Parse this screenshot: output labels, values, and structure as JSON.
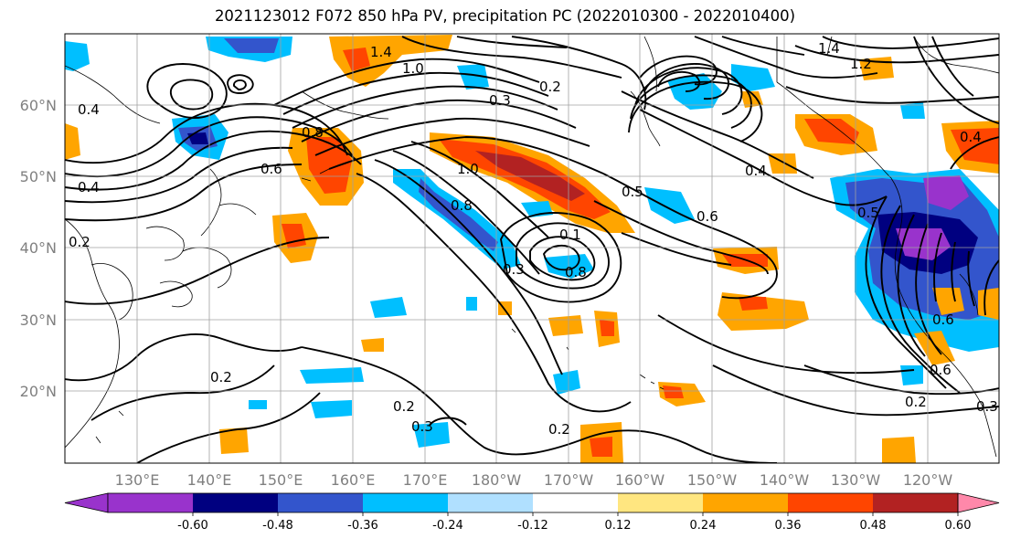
{
  "title": "2021123012 F072 850 hPa PV, precipitation PC (2022010300 - 2022010400)",
  "axes": {
    "lat_ticks": [
      "60°N",
      "50°N",
      "40°N",
      "30°N",
      "20°N"
    ],
    "lon_ticks": [
      "130°E",
      "140°E",
      "150°E",
      "160°E",
      "170°E",
      "180°W",
      "170°W",
      "160°W",
      "150°W",
      "140°W",
      "130°W",
      "120°W"
    ]
  },
  "colorbar": {
    "colors": [
      "#9933cc",
      "#000080",
      "#3355cc",
      "#00bfff",
      "#b0e0ff",
      "#ffffff",
      "#ffe680",
      "#ffa500",
      "#ff4500",
      "#b22222",
      "#ff88aa"
    ],
    "labels": [
      "-0.60",
      "-0.48",
      "-0.36",
      "-0.24",
      "-0.12",
      "0.12",
      "0.24",
      "0.36",
      "0.48",
      "0.60"
    ]
  },
  "contour_labels": [
    "1.4",
    "1.0",
    "0.3",
    "0.2",
    "0.4",
    "0.6",
    "0.8",
    "1.0",
    "0.8",
    "0.1",
    "0.3",
    "0.8",
    "0.5",
    "0.6",
    "0.4",
    "1.4",
    "1.2",
    "0.5",
    "0.6",
    "0.4",
    "0.2",
    "0.2",
    "0.2",
    "0.3",
    "0.2",
    "0.4",
    "0.6",
    "0.2",
    "0.3"
  ]
}
